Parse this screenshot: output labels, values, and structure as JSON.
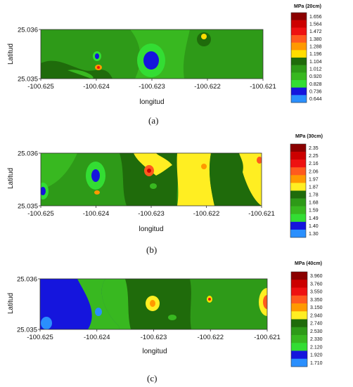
{
  "chart_data": [
    {
      "type": "heatmap",
      "panel_label": "(a)",
      "xlabel": "longitud",
      "ylabel": "Latitud",
      "xlim": [
        -100.625,
        -100.621
      ],
      "ylim": [
        25.035,
        25.036
      ],
      "x_ticks": [
        "-100.625",
        "-100.624",
        "-100.623",
        "-100.622",
        "-100.621"
      ],
      "y_ticks": [
        "25.036",
        "25.035"
      ],
      "legend_title": "MPa (20cm)",
      "legend_levels": [
        "1.656",
        "1.564",
        "1.472",
        "1.380",
        "1.288",
        "1.196",
        "1.104",
        "1.012",
        "0.920",
        "0.828",
        "0.736",
        "0.644"
      ],
      "legend_colors": [
        "#8b0000",
        "#cc0000",
        "#ee1111",
        "#ff5a1e",
        "#ff9900",
        "#ffdd00",
        "#1f6b0b",
        "#2e9a18",
        "#38b820",
        "#33dd33",
        "#1515dd",
        "#2a8ffd"
      ]
    },
    {
      "type": "heatmap",
      "panel_label": "(b)",
      "xlabel": "longitud",
      "ylabel": "Latitud",
      "xlim": [
        -100.625,
        -100.621
      ],
      "ylim": [
        25.035,
        25.036
      ],
      "x_ticks": [
        "-100.625",
        "-100.624",
        "-100.623",
        "-100.622",
        "-100.621"
      ],
      "y_ticks": [
        "25.036",
        "25.035"
      ],
      "legend_title": "MPa (30cm)",
      "legend_levels": [
        "2.35",
        "2.25",
        "2.16",
        "2.06",
        "1.97",
        "1.87",
        "1.78",
        "1.68",
        "1.59",
        "1.49",
        "1.40",
        "1.30"
      ],
      "legend_colors": [
        "#8b0000",
        "#cc0000",
        "#ee1111",
        "#ff5a1e",
        "#ff9900",
        "#ffee22",
        "#1f6b0b",
        "#2e9a18",
        "#38b820",
        "#33dd33",
        "#1515dd",
        "#2a8ffd"
      ]
    },
    {
      "type": "heatmap",
      "panel_label": "(c)",
      "xlabel": "longitud",
      "ylabel": "Latitud",
      "xlim": [
        -100.625,
        -100.621
      ],
      "ylim": [
        25.035,
        25.036
      ],
      "x_ticks": [
        "-100.625",
        "-100.624",
        "-100.623",
        "-100.622",
        "-100.621"
      ],
      "y_ticks": [
        "25.036",
        "25.035"
      ],
      "legend_title": "MPa (40cm)",
      "legend_levels": [
        "3.960",
        "3.760",
        "3.550",
        "3.350",
        "3.150",
        "2.940",
        "2.740",
        "2.530",
        "2.330",
        "2.120",
        "1.920",
        "1.710"
      ],
      "legend_colors": [
        "#8b0000",
        "#cc0000",
        "#ee1111",
        "#ff5a1e",
        "#ff9900",
        "#ffee22",
        "#1f6b0b",
        "#2e9a18",
        "#38b820",
        "#33dd33",
        "#1515dd",
        "#2a8ffd"
      ]
    }
  ]
}
